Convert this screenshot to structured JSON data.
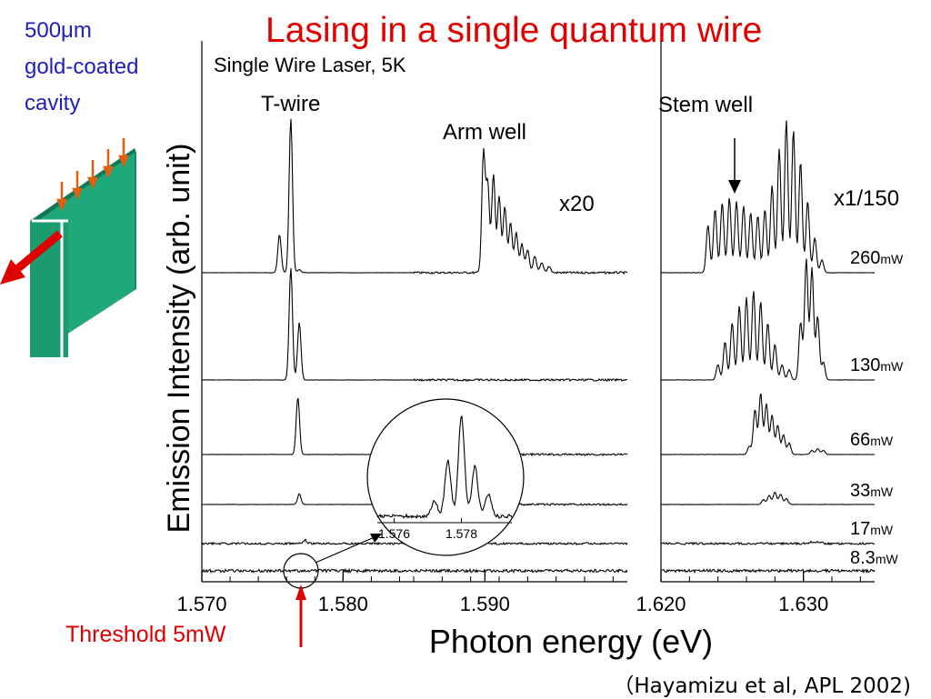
{
  "slide": {
    "title": "Lasing in a single quantum wire",
    "side_text": [
      "500μm",
      "gold-coated",
      "cavity"
    ],
    "threshold_label": "Threshold 5mW",
    "citation": "（Hayamizu et al, APL 2002)"
  },
  "colors": {
    "title": "#e00000",
    "side_text": "#2020c0",
    "cavity_face": "#1fa97a",
    "cavity_top": "#117a55",
    "cavity_side": "#138a60",
    "arrow_orange": "#e06010",
    "arrow_red": "#e00000",
    "spectra": "#000000"
  },
  "chart_data": {
    "type": "line",
    "title": "Single Wire Laser, 5K",
    "xlabel": "Photon energy (eV)",
    "ylabel": "Emission Intensity (arb. unit)",
    "y_units": "arb. unit (offset stacked traces)",
    "panels": [
      {
        "name": "T-wire",
        "xlim": [
          1.57,
          1.585
        ],
        "ticks": [
          1.57,
          1.58
        ],
        "tick_labels": [
          "1.570",
          "1.580"
        ]
      },
      {
        "name": "Arm well",
        "xlim": [
          1.585,
          1.6
        ],
        "ticks": [
          1.59
        ],
        "tick_labels": [
          "1.590"
        ],
        "scale_label": "x20"
      },
      {
        "name": "Stem well",
        "xlim": [
          1.62,
          1.635
        ],
        "ticks": [
          1.62,
          1.63
        ],
        "tick_labels": [
          "1.620",
          "1.630"
        ],
        "scale_label": "x1/150"
      }
    ],
    "power_labels": [
      {
        "value": "260",
        "unit": "mW"
      },
      {
        "value": "130",
        "unit": "mW"
      },
      {
        "value": "66",
        "unit": "mW"
      },
      {
        "value": "33",
        "unit": "mW"
      },
      {
        "value": "17",
        "unit": "mW"
      },
      {
        "value": "8.3",
        "unit": "mW"
      }
    ],
    "series": [
      {
        "name": "260mW",
        "peaks": [
          {
            "x": 1.5755,
            "h": 0.24
          },
          {
            "x": 1.5763,
            "h": 0.97
          },
          {
            "x": 1.5769,
            "h": 0.02
          },
          {
            "x": 1.5899,
            "h": 0.75
          },
          {
            "x": 1.5902,
            "h": 0.55
          },
          {
            "x": 1.5906,
            "h": 0.62
          },
          {
            "x": 1.591,
            "h": 0.48
          },
          {
            "x": 1.5914,
            "h": 0.42
          },
          {
            "x": 1.5918,
            "h": 0.32
          },
          {
            "x": 1.5922,
            "h": 0.25
          },
          {
            "x": 1.5926,
            "h": 0.18
          },
          {
            "x": 1.593,
            "h": 0.14
          },
          {
            "x": 1.5935,
            "h": 0.1
          },
          {
            "x": 1.594,
            "h": 0.06
          },
          {
            "x": 1.5945,
            "h": 0.04
          },
          {
            "x": 1.6233,
            "h": 0.3
          },
          {
            "x": 1.6238,
            "h": 0.4
          },
          {
            "x": 1.6243,
            "h": 0.44
          },
          {
            "x": 1.6248,
            "h": 0.47
          },
          {
            "x": 1.6253,
            "h": 0.45
          },
          {
            "x": 1.6258,
            "h": 0.42
          },
          {
            "x": 1.6263,
            "h": 0.38
          },
          {
            "x": 1.6268,
            "h": 0.36
          },
          {
            "x": 1.6273,
            "h": 0.4
          },
          {
            "x": 1.6278,
            "h": 0.55
          },
          {
            "x": 1.6283,
            "h": 0.78
          },
          {
            "x": 1.6288,
            "h": 0.96
          },
          {
            "x": 1.6293,
            "h": 0.9
          },
          {
            "x": 1.6298,
            "h": 0.7
          },
          {
            "x": 1.6303,
            "h": 0.45
          },
          {
            "x": 1.6308,
            "h": 0.22
          },
          {
            "x": 1.6313,
            "h": 0.08
          }
        ]
      },
      {
        "name": "130mW",
        "peaks": [
          {
            "x": 1.5763,
            "h": 0.88
          },
          {
            "x": 1.5769,
            "h": 0.45
          },
          {
            "x": 1.624,
            "h": 0.12
          },
          {
            "x": 1.6245,
            "h": 0.3
          },
          {
            "x": 1.625,
            "h": 0.45
          },
          {
            "x": 1.6255,
            "h": 0.58
          },
          {
            "x": 1.626,
            "h": 0.65
          },
          {
            "x": 1.6265,
            "h": 0.7
          },
          {
            "x": 1.627,
            "h": 0.62
          },
          {
            "x": 1.6275,
            "h": 0.45
          },
          {
            "x": 1.628,
            "h": 0.28
          },
          {
            "x": 1.6285,
            "h": 0.12
          },
          {
            "x": 1.629,
            "h": 0.08
          },
          {
            "x": 1.6298,
            "h": 0.45
          },
          {
            "x": 1.6302,
            "h": 0.95
          },
          {
            "x": 1.6306,
            "h": 0.88
          },
          {
            "x": 1.631,
            "h": 0.5
          },
          {
            "x": 1.6314,
            "h": 0.14
          }
        ]
      },
      {
        "name": "66mW",
        "peaks": [
          {
            "x": 1.5768,
            "h": 0.7
          },
          {
            "x": 1.6262,
            "h": 0.1
          },
          {
            "x": 1.6266,
            "h": 0.55
          },
          {
            "x": 1.627,
            "h": 0.75
          },
          {
            "x": 1.6274,
            "h": 0.62
          },
          {
            "x": 1.6278,
            "h": 0.48
          },
          {
            "x": 1.6282,
            "h": 0.36
          },
          {
            "x": 1.6286,
            "h": 0.24
          },
          {
            "x": 1.629,
            "h": 0.14
          },
          {
            "x": 1.6306,
            "h": 0.05
          },
          {
            "x": 1.631,
            "h": 0.07
          },
          {
            "x": 1.6314,
            "h": 0.05
          }
        ]
      },
      {
        "name": "33mW",
        "peaks": [
          {
            "x": 1.5769,
            "h": 0.26
          },
          {
            "x": 1.6272,
            "h": 0.12
          },
          {
            "x": 1.6276,
            "h": 0.22
          },
          {
            "x": 1.628,
            "h": 0.3
          },
          {
            "x": 1.6284,
            "h": 0.25
          },
          {
            "x": 1.6288,
            "h": 0.14
          }
        ]
      },
      {
        "name": "17mW",
        "peaks": [
          {
            "x": 1.5773,
            "h": 0.15
          },
          {
            "x": 1.6305,
            "h": 0.06
          },
          {
            "x": 1.6309,
            "h": 0.08
          },
          {
            "x": 1.6313,
            "h": 0.05
          }
        ]
      },
      {
        "name": "8.3mW",
        "peaks": [
          {
            "x": 1.5773,
            "h": 0.03
          }
        ]
      }
    ],
    "inset": {
      "xlim": [
        1.5755,
        1.5795
      ],
      "tick_labels": [
        "1.576",
        "1.578"
      ],
      "peaks": [
        {
          "x": 1.5772,
          "h": 0.15
        },
        {
          "x": 1.5776,
          "h": 0.55
        },
        {
          "x": 1.578,
          "h": 1.0
        },
        {
          "x": 1.5784,
          "h": 0.5
        },
        {
          "x": 1.5788,
          "h": 0.22
        }
      ]
    },
    "annotations": [
      {
        "text": "T-wire"
      },
      {
        "text": "Arm well"
      },
      {
        "text": "Stem well"
      },
      {
        "text": "x20"
      },
      {
        "text": "x1/150"
      }
    ]
  }
}
